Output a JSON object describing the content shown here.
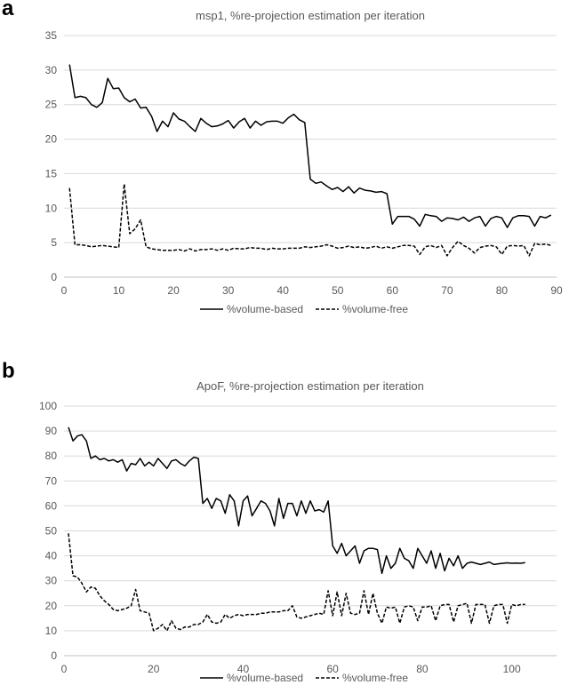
{
  "panels": {
    "a": "a",
    "b": "b"
  },
  "chart_data": [
    {
      "type": "line",
      "title": "msp1, %re-projection estimation per iteration",
      "xlabel": "",
      "ylabel": "",
      "xlim": [
        0,
        90
      ],
      "ylim": [
        0,
        35
      ],
      "xticks": [
        0,
        10,
        20,
        30,
        40,
        50,
        60,
        70,
        80,
        90
      ],
      "yticks": [
        0,
        5,
        10,
        15,
        20,
        25,
        30,
        35
      ],
      "grid": "horizontal",
      "legend": "bottom",
      "series": [
        {
          "name": "%volume-based",
          "style": "solid",
          "x": [
            1,
            2,
            3,
            4,
            5,
            6,
            7,
            8,
            9,
            10,
            11,
            12,
            13,
            14,
            15,
            16,
            17,
            18,
            19,
            20,
            21,
            22,
            23,
            24,
            25,
            26,
            27,
            28,
            29,
            30,
            31,
            32,
            33,
            34,
            35,
            36,
            37,
            38,
            39,
            40,
            41,
            42,
            43,
            44,
            45,
            46,
            47,
            48,
            49,
            50,
            51,
            52,
            53,
            54,
            55,
            56,
            57,
            58,
            59,
            60,
            61,
            62,
            63,
            64,
            65,
            66,
            67,
            68,
            69,
            70,
            71,
            72,
            73,
            74,
            75,
            76,
            77,
            78,
            79,
            80,
            81,
            82,
            83,
            84,
            85,
            86,
            87,
            88,
            89
          ],
          "y": [
            30.8,
            26.0,
            26.2,
            26.0,
            25.0,
            24.6,
            25.3,
            28.8,
            27.3,
            27.4,
            26.0,
            25.4,
            25.8,
            24.5,
            24.6,
            23.3,
            21.1,
            22.6,
            21.8,
            23.8,
            22.9,
            22.6,
            21.8,
            21.1,
            23.0,
            22.3,
            21.8,
            21.9,
            22.2,
            22.7,
            21.6,
            22.5,
            23.0,
            21.6,
            22.6,
            22.0,
            22.5,
            22.6,
            22.6,
            22.3,
            23.1,
            23.6,
            22.8,
            22.4,
            14.2,
            13.6,
            13.8,
            13.2,
            12.7,
            13.0,
            12.4,
            13.1,
            12.2,
            12.9,
            12.6,
            12.5,
            12.3,
            12.4,
            12.1,
            7.7,
            8.8,
            8.8,
            8.8,
            8.4,
            7.4,
            9.1,
            8.9,
            8.8,
            8.1,
            8.6,
            8.5,
            8.3,
            8.7,
            8.1,
            8.6,
            8.8,
            7.4,
            8.5,
            8.8,
            8.6,
            7.2,
            8.6,
            8.9,
            8.9,
            8.8,
            7.4,
            8.8,
            8.6,
            9.0
          ]
        },
        {
          "name": "%volume-free",
          "style": "dashed",
          "x": [
            1,
            2,
            3,
            4,
            5,
            6,
            7,
            8,
            9,
            10,
            11,
            12,
            13,
            14,
            15,
            16,
            17,
            18,
            19,
            20,
            21,
            22,
            23,
            24,
            25,
            26,
            27,
            28,
            29,
            30,
            31,
            32,
            33,
            34,
            35,
            36,
            37,
            38,
            39,
            40,
            41,
            42,
            43,
            44,
            45,
            46,
            47,
            48,
            49,
            50,
            51,
            52,
            53,
            54,
            55,
            56,
            57,
            58,
            59,
            60,
            61,
            62,
            63,
            64,
            65,
            66,
            67,
            68,
            69,
            70,
            71,
            72,
            73,
            74,
            75,
            76,
            77,
            78,
            79,
            80,
            81,
            82,
            83,
            84,
            85,
            86,
            87,
            88,
            89
          ],
          "y": [
            12.9,
            4.7,
            4.7,
            4.6,
            4.4,
            4.5,
            4.6,
            4.5,
            4.4,
            4.3,
            13.5,
            6.3,
            7.0,
            8.3,
            4.4,
            4.1,
            4.0,
            3.9,
            3.9,
            3.9,
            4.0,
            3.8,
            4.1,
            3.8,
            4.0,
            4.0,
            4.1,
            3.9,
            4.1,
            3.9,
            4.2,
            4.1,
            4.1,
            4.3,
            4.2,
            4.2,
            4.0,
            4.2,
            4.1,
            4.1,
            4.2,
            4.2,
            4.2,
            4.4,
            4.3,
            4.4,
            4.5,
            4.7,
            4.5,
            4.2,
            4.3,
            4.5,
            4.3,
            4.4,
            4.2,
            4.3,
            4.5,
            4.2,
            4.4,
            4.2,
            4.4,
            4.6,
            4.6,
            4.5,
            3.3,
            4.4,
            4.6,
            4.3,
            4.6,
            3.1,
            4.3,
            5.2,
            4.6,
            4.2,
            3.5,
            4.3,
            4.5,
            4.6,
            4.4,
            3.3,
            4.5,
            4.6,
            4.5,
            4.6,
            3.1,
            4.9,
            4.7,
            4.8,
            4.6
          ]
        }
      ]
    },
    {
      "type": "line",
      "title": "ApoF, %re-projection estimation per iteration",
      "xlabel": "",
      "ylabel": "",
      "xlim": [
        0,
        110
      ],
      "ylim": [
        0,
        100
      ],
      "xticks": [
        0,
        20,
        40,
        60,
        80,
        100
      ],
      "yticks": [
        0,
        10,
        20,
        30,
        40,
        50,
        60,
        70,
        80,
        90,
        100
      ],
      "grid": "horizontal",
      "legend": "bottom",
      "series": [
        {
          "name": "%volume-based",
          "style": "solid",
          "x": [
            1,
            2,
            3,
            4,
            5,
            6,
            7,
            8,
            9,
            10,
            11,
            12,
            13,
            14,
            15,
            16,
            17,
            18,
            19,
            20,
            21,
            22,
            23,
            24,
            25,
            26,
            27,
            28,
            29,
            30,
            31,
            32,
            33,
            34,
            35,
            36,
            37,
            38,
            39,
            40,
            41,
            42,
            43,
            44,
            45,
            46,
            47,
            48,
            49,
            50,
            51,
            52,
            53,
            54,
            55,
            56,
            57,
            58,
            59,
            60,
            61,
            62,
            63,
            64,
            65,
            66,
            67,
            68,
            69,
            70,
            71,
            72,
            73,
            74,
            75,
            76,
            77,
            78,
            79,
            80,
            81,
            82,
            83,
            84,
            85,
            86,
            87,
            88,
            89,
            90,
            91,
            92,
            93,
            94,
            95,
            96,
            97,
            98,
            99,
            100,
            101,
            102,
            103
          ],
          "y": [
            91.5,
            86.0,
            88.0,
            88.5,
            86.0,
            79.0,
            80.0,
            78.5,
            79.0,
            78.0,
            78.5,
            77.5,
            78.5,
            74.0,
            77.0,
            76.5,
            79.0,
            76.0,
            77.5,
            76.0,
            79.0,
            77.0,
            75.0,
            78.0,
            78.5,
            77.0,
            76.0,
            78.0,
            79.5,
            79.0,
            61.0,
            63.0,
            59.0,
            63.0,
            62.0,
            57.0,
            64.5,
            62.0,
            52.0,
            62.0,
            64.0,
            56.0,
            59.0,
            62.0,
            61.0,
            58.0,
            52.0,
            63.0,
            55.0,
            61.0,
            61.0,
            56.0,
            62.0,
            57.0,
            62.0,
            58.0,
            58.5,
            57.5,
            62.0,
            44.0,
            41.0,
            45.0,
            40.0,
            42.0,
            44.0,
            37.0,
            42.0,
            43.0,
            43.0,
            42.5,
            33.0,
            40.0,
            35.0,
            37.0,
            43.0,
            39.0,
            38.0,
            35.0,
            43.0,
            40.0,
            37.0,
            42.0,
            35.0,
            41.0,
            34.0,
            39.0,
            36.0,
            40.0,
            35.0,
            37.0,
            37.5,
            37.0,
            36.5,
            37.0,
            37.5,
            36.5,
            36.8,
            37.0,
            37.2,
            37.0,
            37.1,
            37.0,
            37.3
          ]
        },
        {
          "name": "%volume-free",
          "style": "dashed",
          "x": [
            1,
            2,
            3,
            4,
            5,
            6,
            7,
            8,
            9,
            10,
            11,
            12,
            13,
            14,
            15,
            16,
            17,
            18,
            19,
            20,
            21,
            22,
            23,
            24,
            25,
            26,
            27,
            28,
            29,
            30,
            31,
            32,
            33,
            34,
            35,
            36,
            37,
            38,
            39,
            40,
            41,
            42,
            43,
            44,
            45,
            46,
            47,
            48,
            49,
            50,
            51,
            52,
            53,
            54,
            55,
            56,
            57,
            58,
            59,
            60,
            61,
            62,
            63,
            64,
            65,
            66,
            67,
            68,
            69,
            70,
            71,
            72,
            73,
            74,
            75,
            76,
            77,
            78,
            79,
            80,
            81,
            82,
            83,
            84,
            85,
            86,
            87,
            88,
            89,
            90,
            91,
            92,
            93,
            94,
            95,
            96,
            97,
            98,
            99,
            100,
            101,
            102,
            103
          ],
          "y": [
            49.0,
            32.0,
            31.5,
            29.0,
            25.5,
            27.5,
            27.0,
            24.0,
            22.0,
            20.5,
            18.5,
            18.0,
            18.5,
            19.0,
            20.0,
            26.5,
            18.0,
            17.5,
            17.0,
            10.0,
            11.0,
            12.5,
            10.0,
            14.0,
            11.0,
            10.5,
            11.5,
            11.5,
            12.5,
            12.5,
            13.5,
            16.5,
            13.5,
            13.0,
            13.5,
            16.5,
            15.0,
            16.0,
            16.5,
            16.0,
            16.5,
            16.5,
            16.5,
            17.0,
            17.0,
            17.5,
            17.5,
            17.5,
            18.0,
            18.0,
            20.0,
            15.5,
            15.0,
            15.5,
            16.0,
            16.5,
            17.0,
            16.5,
            26.0,
            16.0,
            25.5,
            16.0,
            25.0,
            17.0,
            16.5,
            17.0,
            26.0,
            16.5,
            25.0,
            17.0,
            13.0,
            19.5,
            19.0,
            19.5,
            13.0,
            19.5,
            20.0,
            19.5,
            14.0,
            19.5,
            19.5,
            20.0,
            14.0,
            20.0,
            20.5,
            20.5,
            13.5,
            20.0,
            20.5,
            21.0,
            13.0,
            20.5,
            20.5,
            20.5,
            13.0,
            20.0,
            20.5,
            20.5,
            13.0,
            20.5,
            20.0,
            20.5,
            20.5
          ]
        }
      ]
    }
  ]
}
